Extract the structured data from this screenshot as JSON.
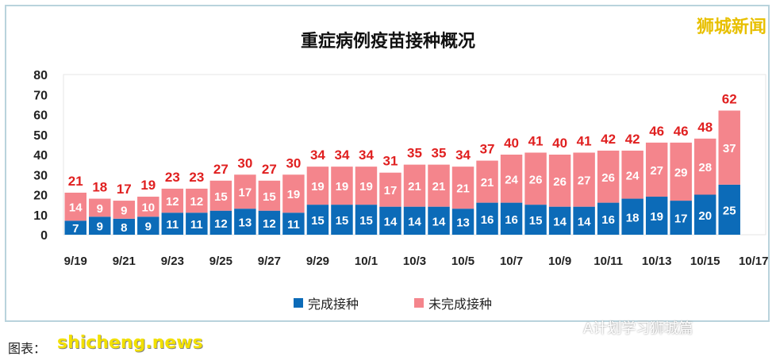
{
  "brand": "狮城新闻",
  "source": "图表：",
  "watermark": "shicheng.news",
  "wechat": "A计划学习狮城篇",
  "colors": {
    "completed": "#0c6bb8",
    "incomplete": "#f4858c",
    "total_label": "#e02020"
  },
  "chart_data": {
    "type": "bar",
    "stacked": true,
    "title": "重症病例疫苗接种概况",
    "categories": [
      "9/19",
      "9/20",
      "9/21",
      "9/22",
      "9/23",
      "9/24",
      "9/25",
      "9/26",
      "9/27",
      "9/28",
      "9/29",
      "9/30",
      "10/1",
      "10/2",
      "10/3",
      "10/4",
      "10/5",
      "10/6",
      "10/7",
      "10/8",
      "10/9",
      "10/10",
      "10/11",
      "10/12",
      "10/13",
      "10/14",
      "10/15",
      "10/16"
    ],
    "x_tick_labels": [
      "9/19",
      "9/21",
      "9/23",
      "9/25",
      "9/27",
      "9/29",
      "10/1",
      "10/3",
      "10/5",
      "10/7",
      "10/9",
      "10/11",
      "10/13",
      "10/15",
      "10/17"
    ],
    "series": [
      {
        "name": "完成接种",
        "values": [
          7,
          9,
          8,
          9,
          11,
          11,
          12,
          13,
          12,
          11,
          15,
          15,
          15,
          14,
          14,
          14,
          13,
          16,
          16,
          15,
          14,
          14,
          16,
          18,
          19,
          17,
          20,
          25
        ]
      },
      {
        "name": "未完成接种",
        "values": [
          14,
          9,
          9,
          10,
          12,
          12,
          15,
          17,
          15,
          19,
          19,
          19,
          19,
          17,
          21,
          21,
          21,
          21,
          24,
          26,
          26,
          27,
          26,
          24,
          27,
          29,
          28,
          37
        ]
      }
    ],
    "totals": [
      21,
      18,
      17,
      19,
      23,
      23,
      27,
      30,
      27,
      30,
      34,
      34,
      34,
      31,
      35,
      35,
      34,
      37,
      40,
      41,
      40,
      41,
      42,
      42,
      46,
      46,
      48,
      62
    ],
    "ylim": [
      0,
      80
    ],
    "yticks": [
      0,
      10,
      20,
      30,
      40,
      50,
      60,
      70,
      80
    ],
    "legend": "bottom",
    "grid": false
  }
}
